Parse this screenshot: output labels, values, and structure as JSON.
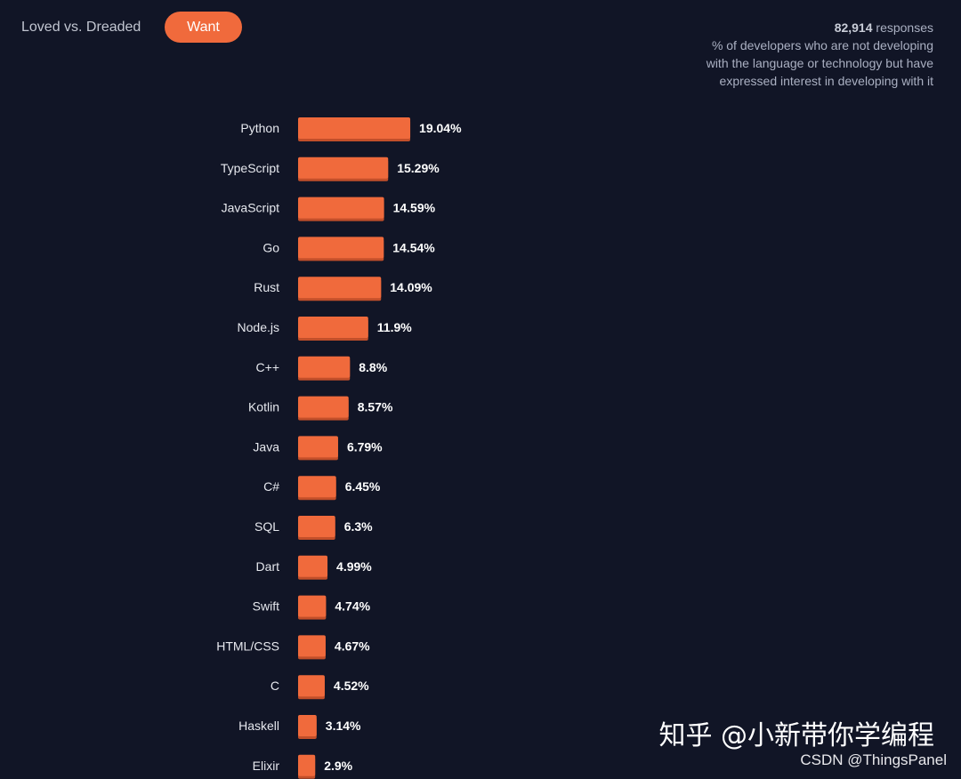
{
  "tabs": {
    "loved_label": "Loved vs. Dreaded",
    "want_label": "Want"
  },
  "info": {
    "count": "82,914",
    "count_suffix": " responses",
    "description": "% of developers who are not developing with the language or technology but have expressed interest in developing with it"
  },
  "colors": {
    "background": "#111526",
    "bar": "#f06a3c",
    "bar_shadow": "#c24f2a",
    "label": "#e6e8ee",
    "value": "#ffffff"
  },
  "chart_data": {
    "type": "bar",
    "orientation": "horizontal",
    "categories": [
      "Python",
      "TypeScript",
      "JavaScript",
      "Go",
      "Rust",
      "Node.js",
      "C++",
      "Kotlin",
      "Java",
      "C#",
      "SQL",
      "Dart",
      "Swift",
      "HTML/CSS",
      "C",
      "Haskell",
      "Elixir"
    ],
    "values": [
      19.04,
      15.29,
      14.59,
      14.54,
      14.09,
      11.9,
      8.8,
      8.57,
      6.79,
      6.45,
      6.3,
      4.99,
      4.74,
      4.67,
      4.52,
      3.14,
      2.9
    ],
    "value_labels": [
      "19.04%",
      "15.29%",
      "14.59%",
      "14.54%",
      "14.09%",
      "11.9%",
      "8.8%",
      "8.57%",
      "6.79%",
      "6.45%",
      "6.3%",
      "4.99%",
      "4.74%",
      "4.67%",
      "4.52%",
      "3.14%",
      "2.9%"
    ],
    "unit": "%",
    "title": "",
    "xlabel": "",
    "ylabel": "",
    "grid": false,
    "legend": "none"
  },
  "watermark": "知乎 @小新带你学编程",
  "credit": "CSDN @ThingsPanel"
}
